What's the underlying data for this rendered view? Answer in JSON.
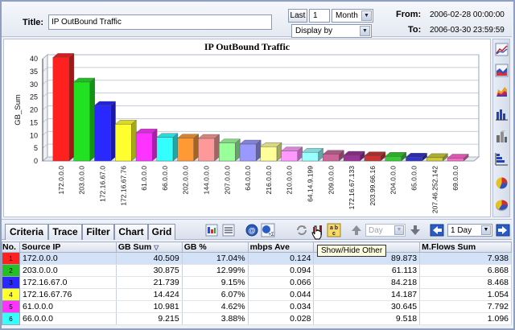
{
  "header": {
    "title_label": "Title:",
    "title_value": "IP OutBound Traffic",
    "last_label": "Last",
    "last_value": "1",
    "period": "Month",
    "display_by": "Display by",
    "from_label": "From:",
    "from_value": "2006-02-28 00:00:00",
    "to_label": "To:",
    "to_value": "2006-03-30 23:59:59"
  },
  "chart_data": {
    "type": "bar",
    "title": "IP OutBound Traffic",
    "xlabel": "",
    "ylabel": "GB_Sum",
    "ylim": [
      0,
      40
    ],
    "yticks": [
      "0",
      "5",
      "10",
      "15",
      "20",
      "25",
      "30",
      "35",
      "40"
    ],
    "grid": true,
    "categories": [
      "172.0.0.0",
      "203.0.0.0",
      "172.16.67.0",
      "172.16.67.76",
      "61.0.0.0",
      "66.0.0.0",
      "202.0.0.0",
      "144.0.0.0",
      "207.0.0.0",
      "64.0.0.0",
      "216.0.0.0",
      "210.0.0.0",
      "64.14.9.199",
      "209.0.0.0",
      "172.16.67.133",
      "203.99.66.16",
      "204.0.0.0",
      "65.0.0.0",
      "207.46.252.142",
      "69.0.0.0"
    ],
    "values": [
      40.509,
      30.875,
      21.739,
      14.424,
      10.981,
      9.215,
      8.9,
      8.8,
      7.0,
      6.6,
      5.6,
      3.9,
      3.4,
      2.6,
      2.2,
      2.0,
      1.8,
      1.5,
      1.3,
      1.1
    ],
    "colors": [
      "#ff2020",
      "#22e022",
      "#2828ff",
      "#ffff30",
      "#ff33ff",
      "#33ffff",
      "#ff9933",
      "#ff9999",
      "#99ff99",
      "#9999ff",
      "#ffff99",
      "#ff99ff",
      "#99ffff",
      "#cc6699",
      "#993399",
      "#cc3333",
      "#33cc33",
      "#3333cc",
      "#cccc33",
      "#ff66cc"
    ]
  },
  "right_toolbar": [
    "line-chart-icon",
    "area-chart-icon",
    "3d-area-icon",
    "bar-chart-icon",
    "3d-bar-icon",
    "stacked-bar-icon",
    "pie-chart-icon",
    "3d-pie-icon"
  ],
  "tabs": [
    {
      "label": "Criteria"
    },
    {
      "label": "Trace"
    },
    {
      "label": "Filter"
    },
    {
      "label": "Chart"
    },
    {
      "label": "Grid"
    }
  ],
  "toolbar": {
    "interval_left": "Day",
    "interval_right": "1 Day",
    "tooltip": "Show/Hide Other"
  },
  "table": {
    "columns": [
      "No.",
      "Source IP",
      "GB Sum",
      "GB %",
      "mbps Ave",
      "",
      "M.Flows Sum"
    ],
    "sort_indicator": "▽",
    "rows": [
      {
        "no": "1",
        "color": "#ff2020",
        "ip": "172.0.0.0",
        "gb_sum": "40.509",
        "gb_pct": "17.04%",
        "mbps": "0.124",
        "extra": "89.873",
        "mflows": "7.938"
      },
      {
        "no": "2",
        "color": "#22c022",
        "ip": "203.0.0.0",
        "gb_sum": "30.875",
        "gb_pct": "12.99%",
        "mbps": "0.094",
        "extra": "61.113",
        "mflows": "6.868"
      },
      {
        "no": "3",
        "color": "#2828ff",
        "ip": "172.16.67.0",
        "gb_sum": "21.739",
        "gb_pct": "9.15%",
        "mbps": "0.066",
        "extra": "84.218",
        "mflows": "8.468"
      },
      {
        "no": "4",
        "color": "#ffff30",
        "ip": "172.16.67.76",
        "gb_sum": "14.424",
        "gb_pct": "6.07%",
        "mbps": "0.044",
        "extra": "14.187",
        "mflows": "1.054"
      },
      {
        "no": "5",
        "color": "#ff33ff",
        "ip": "61.0.0.0",
        "gb_sum": "10.981",
        "gb_pct": "4.62%",
        "mbps": "0.034",
        "extra": "30.645",
        "mflows": "7.792"
      },
      {
        "no": "6",
        "color": "#33ffff",
        "ip": "66.0.0.0",
        "gb_sum": "9.215",
        "gb_pct": "3.88%",
        "mbps": "0.028",
        "extra": "9.518",
        "mflows": "1.096"
      }
    ]
  }
}
